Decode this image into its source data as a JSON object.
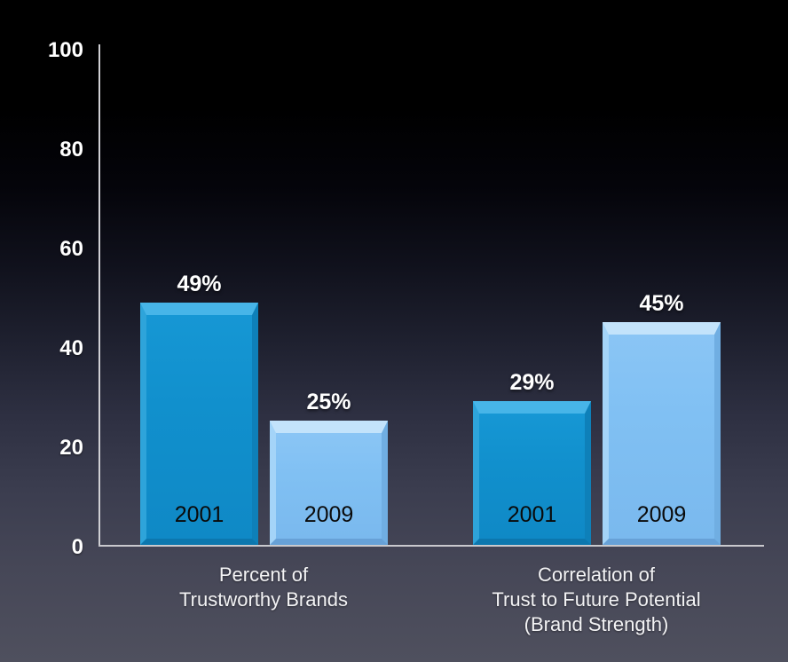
{
  "chart_data": {
    "type": "bar",
    "title": "",
    "xlabel": "",
    "ylabel": "",
    "ylim": [
      0,
      100
    ],
    "yticks": [
      0,
      20,
      40,
      60,
      80,
      100
    ],
    "grid": false,
    "legend_position": "none",
    "categories": [
      "Percent of Trustworthy Brands",
      "Correlation of Trust to Future Potential (Brand Strength)"
    ],
    "series": [
      {
        "name": "2001",
        "values": [
          49,
          29
        ]
      },
      {
        "name": "2009",
        "values": [
          25,
          45
        ]
      }
    ]
  },
  "axis": {
    "tick_labels_top_to_bottom": [
      "100",
      "80",
      "60",
      "40",
      "20",
      "0"
    ]
  },
  "groups": [
    {
      "label_lines": [
        "Percent of",
        "Trustworthy Brands",
        ""
      ],
      "bars": [
        {
          "year": "2001",
          "value": 49,
          "value_label": "49%"
        },
        {
          "year": "2009",
          "value": 25,
          "value_label": "25%"
        }
      ]
    },
    {
      "label_lines": [
        "Correlation of",
        "Trust to Future Potential",
        "(Brand Strength)"
      ],
      "bars": [
        {
          "year": "2001",
          "value": 29,
          "value_label": "29%"
        },
        {
          "year": "2009",
          "value": 45,
          "value_label": "45%"
        }
      ]
    }
  ],
  "colors": {
    "bar_2001": "#1190cd",
    "bar_2009": "#80c0f3",
    "axis_line": "#c9c9cd",
    "tick_text": "#ffffff",
    "value_text": "#ffffff",
    "year_text": "#0a0a0a",
    "category_text": "#f3f3f5",
    "background_top": "#000000",
    "background_bottom": "#4f505e"
  }
}
